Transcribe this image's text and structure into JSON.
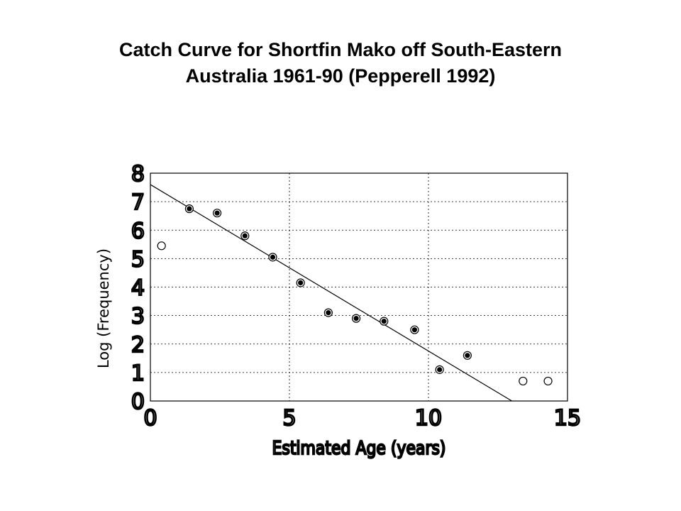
{
  "title_line1": "Catch Curve for Shortfin Mako off South-Eastern",
  "title_line2": "Australia 1961-90 (Pepperell 1992)",
  "chart_data": {
    "type": "scatter",
    "title": "Catch Curve for Shortfin Mako off South-Eastern Australia 1961-90 (Pepperell 1992)",
    "xlabel": "Estimated Age (years)",
    "ylabel": "Log (Frequency)",
    "xlim": [
      0,
      15
    ],
    "ylim": [
      0,
      8
    ],
    "xticks": [
      0,
      5,
      10,
      15
    ],
    "yticks": [
      0,
      1,
      2,
      3,
      4,
      5,
      6,
      7,
      8
    ],
    "grid": true,
    "series": [
      {
        "marker": "filled-circle",
        "x": [
          1.4,
          2.4,
          3.4,
          4.4,
          5.4,
          6.4,
          7.4,
          8.4,
          9.5,
          10.4,
          11.4
        ],
        "y": [
          6.75,
          6.6,
          5.8,
          5.05,
          4.15,
          3.1,
          2.9,
          2.8,
          2.5,
          1.1,
          1.6
        ]
      },
      {
        "marker": "open-circle",
        "x": [
          0.4,
          13.4,
          14.3
        ],
        "y": [
          5.45,
          0.7,
          0.7
        ]
      }
    ],
    "fit_line": {
      "x": [
        0,
        13.0
      ],
      "y": [
        7.6,
        0
      ]
    },
    "colors": {
      "axes": "#000000",
      "grid": "#000000",
      "background": "#ffffff"
    }
  }
}
